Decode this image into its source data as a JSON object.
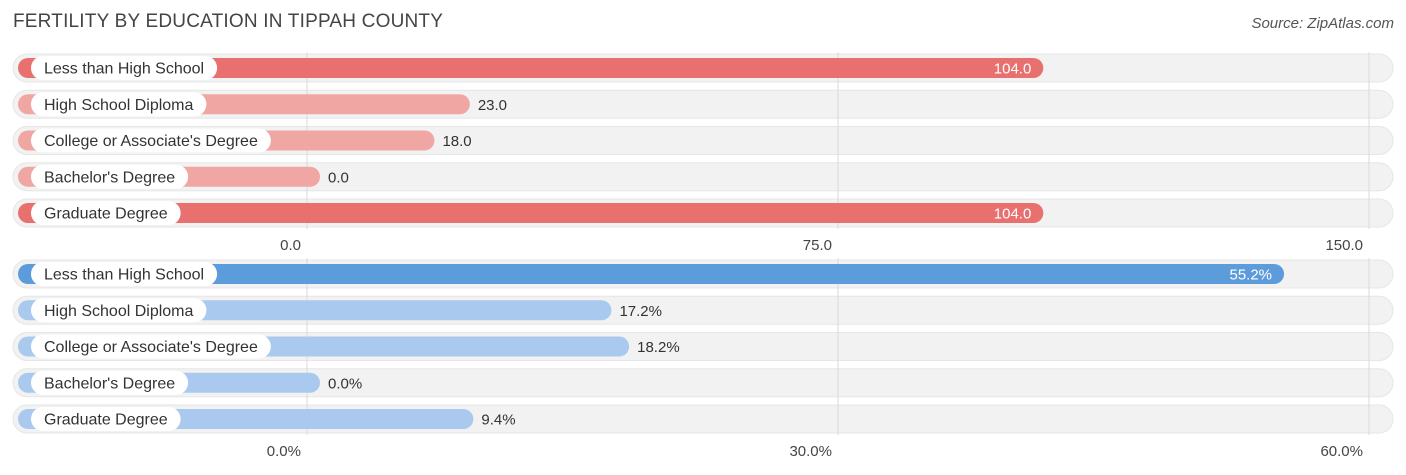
{
  "title": "FERTILITY BY EDUCATION IN TIPPAH COUNTY",
  "source": "Source: ZipAtlas.com",
  "colors": {
    "red_strong": "#e8716f",
    "red_light": "#f0a7a4",
    "blue_strong": "#5d9cdb",
    "blue_light": "#a9c9ee",
    "track": "#f2f2f2",
    "grid": "#d9d9d9"
  },
  "chart_data": [
    {
      "type": "bar",
      "orientation": "horizontal",
      "categories": [
        "Less than High School",
        "High School Diploma",
        "College or Associate's Degree",
        "Bachelor's Degree",
        "Graduate Degree"
      ],
      "values": [
        104.0,
        23.0,
        18.0,
        0.0,
        104.0
      ],
      "value_labels": [
        "104.0",
        "23.0",
        "18.0",
        "0.0",
        "104.0"
      ],
      "xlim": [
        0,
        150
      ],
      "ticks": [
        0,
        75,
        150
      ],
      "tick_labels": [
        "0.0",
        "75.0",
        "150.0"
      ],
      "color": "red"
    },
    {
      "type": "bar",
      "orientation": "horizontal",
      "categories": [
        "Less than High School",
        "High School Diploma",
        "College or Associate's Degree",
        "Bachelor's Degree",
        "Graduate Degree"
      ],
      "values": [
        55.2,
        17.2,
        18.2,
        0.0,
        9.4
      ],
      "value_labels": [
        "55.2%",
        "17.2%",
        "18.2%",
        "0.0%",
        "9.4%"
      ],
      "xlim": [
        0,
        60
      ],
      "ticks": [
        0,
        30,
        60
      ],
      "tick_labels": [
        "0.0%",
        "30.0%",
        "60.0%"
      ],
      "color": "blue"
    }
  ]
}
